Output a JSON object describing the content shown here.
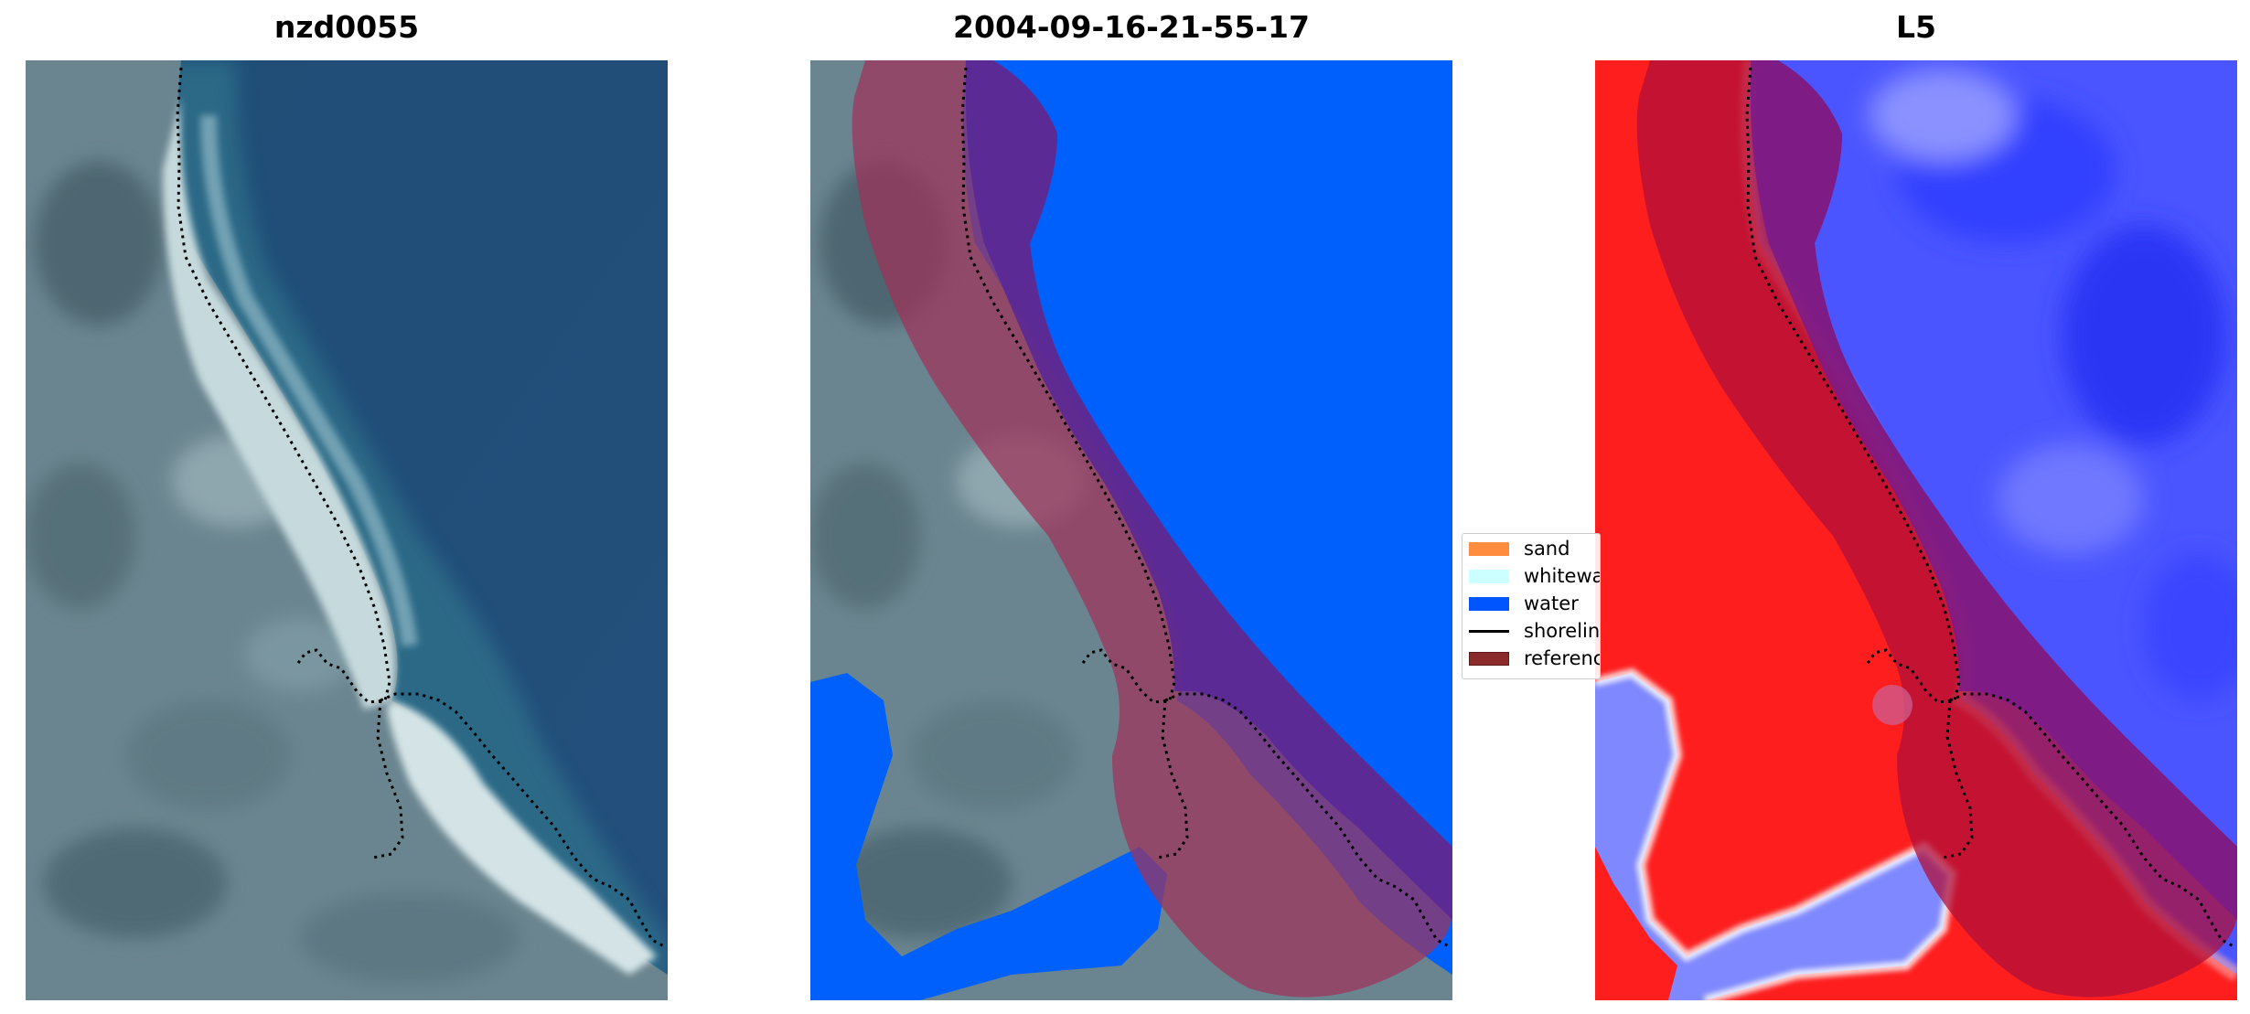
{
  "panels": [
    {
      "title": "nzd0055"
    },
    {
      "title": "2004-09-16-21-55-17"
    },
    {
      "title": "L5"
    }
  ],
  "legend": {
    "items": [
      {
        "label": "sand",
        "color": "#ff8c3f"
      },
      {
        "label": "whitewa",
        "color": "#ccffff"
      },
      {
        "label": "water",
        "color": "#0055ff"
      },
      {
        "label": "shorelin",
        "color": "#000000"
      },
      {
        "label": "referenc",
        "color": "#8b2a2a"
      }
    ]
  },
  "colors": {
    "ocean": "#24507a",
    "land": "#6f8890",
    "beach": "#c9dde0",
    "classified_water": "#0060fb",
    "reference_overlay": "#a0325a",
    "index_red": "#ff1e1e",
    "index_blue": "#3d46ff"
  }
}
